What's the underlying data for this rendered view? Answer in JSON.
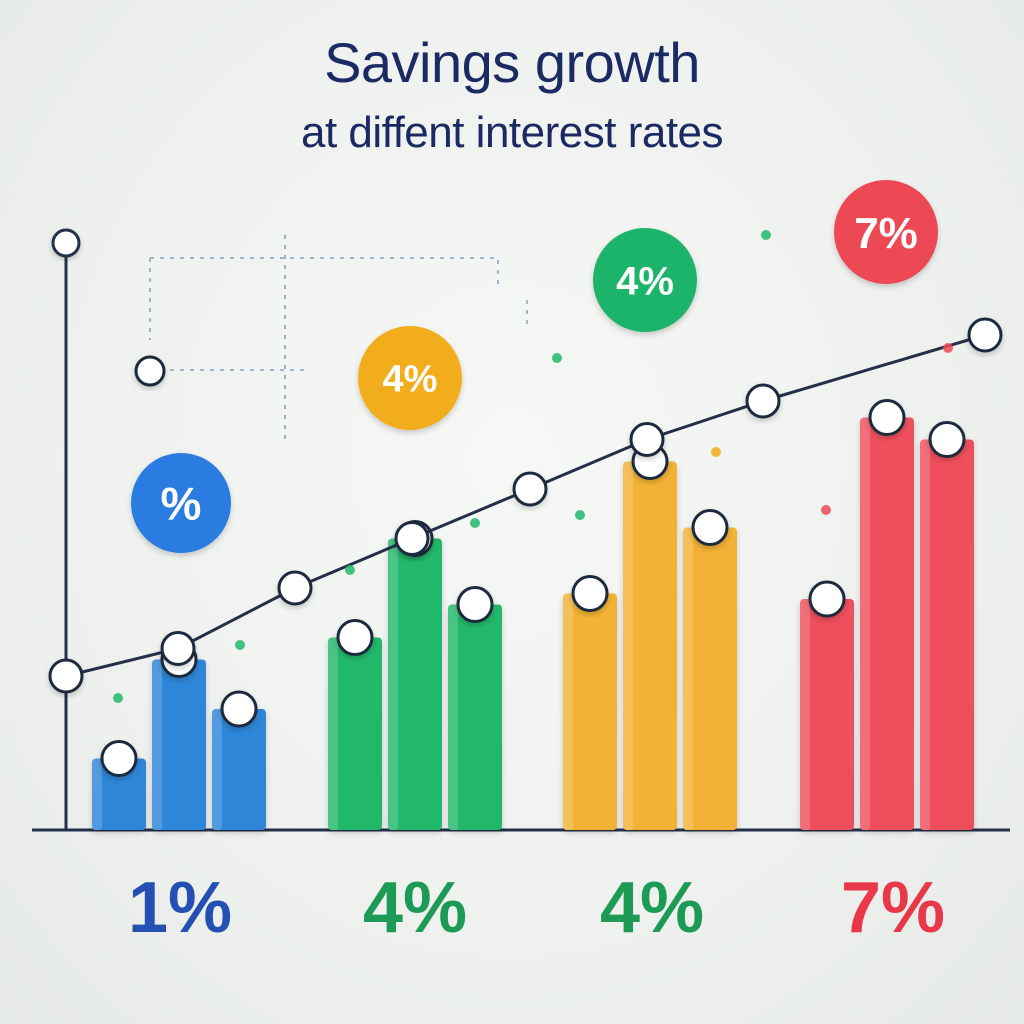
{
  "chart_data": {
    "type": "bar",
    "title_line1": "Savings growth",
    "title_line2": "at diffent interest rates",
    "categories": [
      "1%",
      "4%",
      "4%",
      "7%"
    ],
    "colors": [
      "#2f86d8",
      "#22b86a",
      "#f3b236",
      "#ef4f5b"
    ],
    "label_colors": [
      "#2450b4",
      "#1d9a55",
      "#1d9a55",
      "#e9384a"
    ],
    "bar_values": [
      [
        13,
        31,
        22
      ],
      [
        35,
        53,
        41
      ],
      [
        43,
        67,
        55
      ],
      [
        42,
        75,
        71
      ]
    ],
    "ylim": [
      0,
      100
    ],
    "trend_line": [
      28,
      33,
      44,
      53,
      62,
      71,
      78,
      90
    ],
    "bubbles": [
      {
        "label": "%",
        "color": "#2c7be0"
      },
      {
        "label": "4%",
        "color": "#f2ad1e"
      },
      {
        "label": "4%",
        "color": "#1fb46a"
      },
      {
        "label": "7%",
        "color": "#ec4a55"
      }
    ],
    "grid": false
  }
}
